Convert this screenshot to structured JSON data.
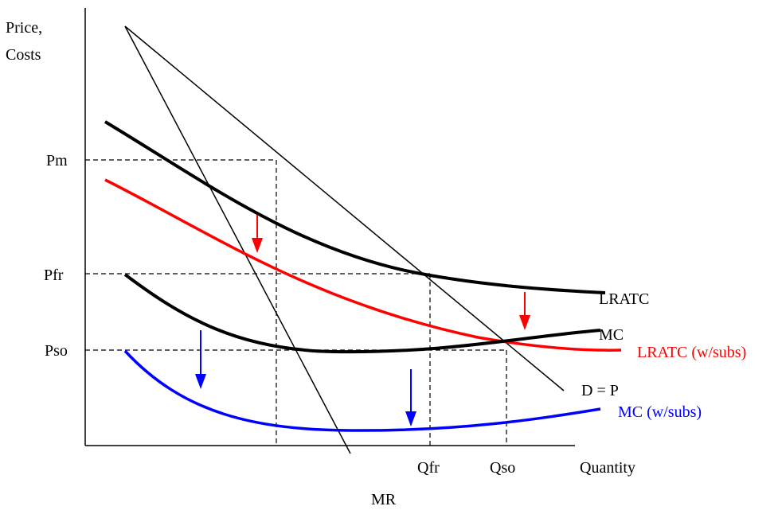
{
  "labels": {
    "yaxis_line1": "Price,",
    "yaxis_line2": "Costs",
    "xaxis": "Quantity",
    "pm": "Pm",
    "pfr": "Pfr",
    "pso": "Pso",
    "qfr": "Qfr",
    "qso": "Qso",
    "mr": "MR",
    "demand": "D = P",
    "lratc": "LRATC",
    "mc": "MC",
    "lratc_subs": "LRATC (w/subs)",
    "mc_subs": "MC (w/subs)"
  },
  "colors": {
    "axis": "#000000",
    "cost_black": "#000000",
    "subsidized_lratc": "#ff0000",
    "subsidized_mc": "#0000ff",
    "arrow_red": "#ff0000",
    "arrow_blue": "#0000ff"
  }
}
